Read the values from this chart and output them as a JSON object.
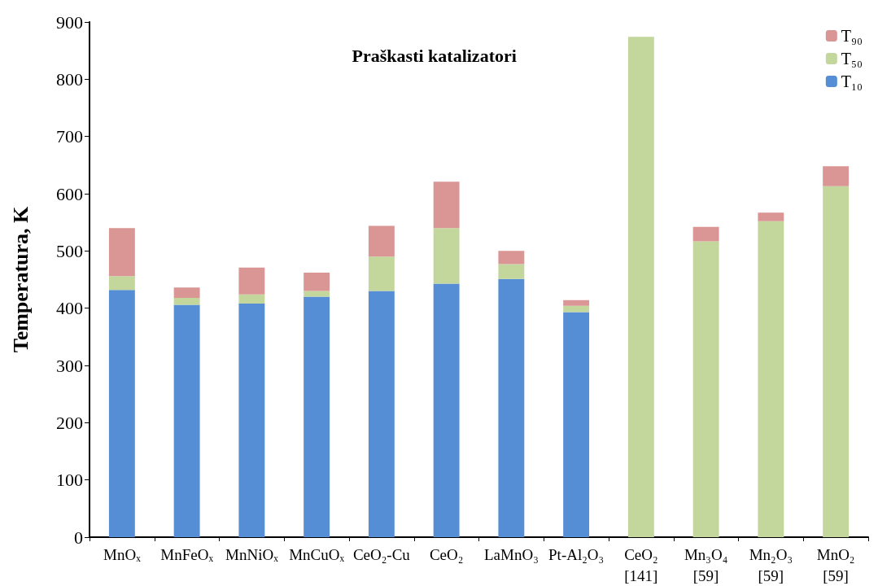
{
  "chart_data": {
    "type": "bar",
    "stacked": true,
    "title": "Praškasti katalizatori",
    "ylabel": "Temperatura, K",
    "categories": [
      "MnOₓ",
      "MnFeOₓ",
      "MnNiOₓ",
      "MnCuOₓ",
      "CeO₂-Cu",
      "CeO₂",
      "LaMnO₃",
      "Pt-Al₂O₃",
      "CeO₂\n[141]",
      "Mn₃O₄\n[59]",
      "Mn₂O₃\n[59]",
      "MnO₂\n[59]"
    ],
    "series": [
      {
        "name": "T₁₀",
        "color": "#558ed5",
        "values": [
          432,
          406,
          408,
          420,
          430,
          443,
          451,
          393,
          null,
          null,
          null,
          null
        ]
      },
      {
        "name": "T₅₀",
        "color": "#c3d69b",
        "values": [
          24,
          12,
          16,
          10,
          60,
          97,
          26,
          11,
          874,
          517,
          552,
          613
        ]
      },
      {
        "name": "T₉₀",
        "color": "#d99694",
        "values": [
          84,
          18,
          47,
          32,
          54,
          81,
          23,
          10,
          null,
          25,
          15,
          35
        ]
      }
    ],
    "ylim": [
      0,
      900
    ],
    "yticks": [
      0,
      100,
      200,
      300,
      400,
      500,
      600,
      700,
      800,
      900
    ],
    "grid": false,
    "legend": "top right"
  }
}
